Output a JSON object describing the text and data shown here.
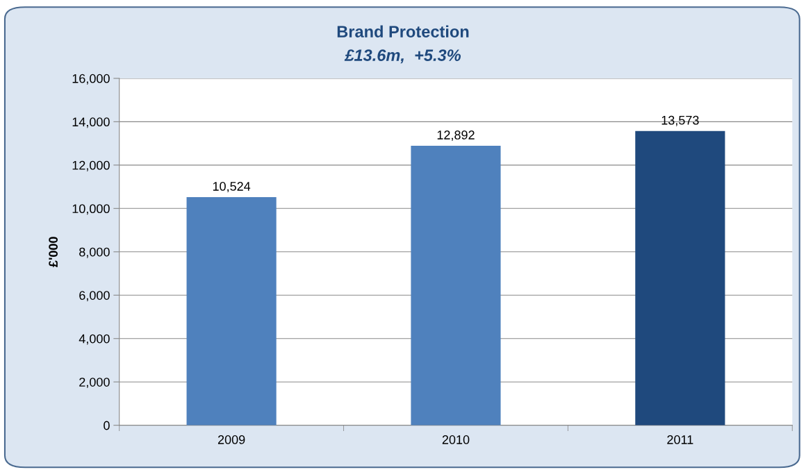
{
  "chart_data": {
    "type": "bar",
    "title": "Brand Protection",
    "subtitle": "£13.6m,  +5.3%",
    "ylabel": "£'000",
    "categories": [
      "2009",
      "2010",
      "2011"
    ],
    "values": [
      10524,
      12892,
      13573
    ],
    "colors": [
      "#4f81bd",
      "#4f81bd",
      "#1f497d"
    ],
    "ylim": [
      0,
      16000
    ],
    "yticks": [
      {
        "value": 0,
        "label": "0"
      },
      {
        "value": 2000,
        "label": "2,000"
      },
      {
        "value": 4000,
        "label": "4,000"
      },
      {
        "value": 6000,
        "label": "6,000"
      },
      {
        "value": 8000,
        "label": "8,000"
      },
      {
        "value": 10000,
        "label": "10,000"
      },
      {
        "value": 12000,
        "label": "12,000"
      },
      {
        "value": 14000,
        "label": "14,000"
      },
      {
        "value": 16000,
        "label": "16,000"
      }
    ],
    "value_labels": [
      "10,524",
      "12,892",
      "13,573"
    ],
    "grid": "y",
    "legend": false
  }
}
